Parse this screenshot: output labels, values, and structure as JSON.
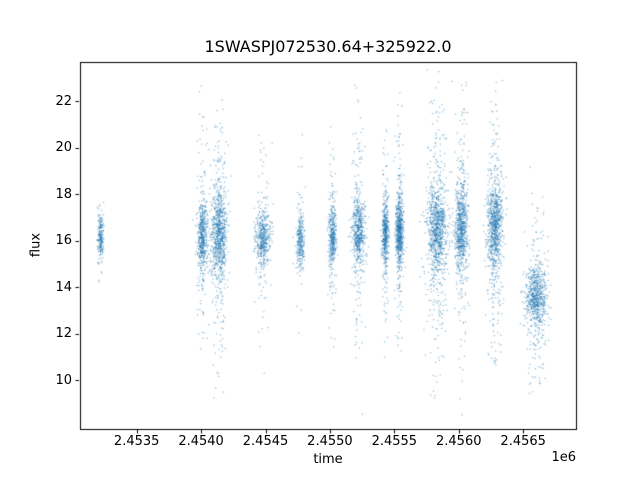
{
  "chart_data": {
    "type": "scatter",
    "title": "1SWASPJ072530.64+325922.0",
    "xlabel": "time",
    "ylabel": "flux",
    "x_offset_label": "1e6",
    "xlim": [
      2.45306,
      2.45691
    ],
    "ylim": [
      7.9,
      23.7
    ],
    "xticks": [
      2.4535,
      2.454,
      2.4545,
      2.455,
      2.4555,
      2.456,
      2.4565
    ],
    "xtick_labels": [
      "2.4535",
      "2.4540",
      "2.4545",
      "2.4550",
      "2.4555",
      "2.4560",
      "2.4565"
    ],
    "yticks": [
      10,
      12,
      14,
      16,
      18,
      20,
      22
    ],
    "ytick_labels": [
      "10",
      "12",
      "14",
      "16",
      "18",
      "20",
      "22"
    ],
    "grid": false,
    "legend": null,
    "marker_color": "#1f77b4",
    "marker_alpha": 0.5,
    "marker_size_px": 1.2,
    "clusters_note": "Light curve rendered as vertical observing-season clusters; each entry gives x center (1e6 JD), x std, point count, mean flux, core flux std, tail fraction, tail flux std.",
    "clusters": [
      {
        "x": 2.45322,
        "xs": 1.2e-05,
        "n": 220,
        "ym": 16.2,
        "ys": 0.5,
        "tf": 0.06,
        "ts": 0.9
      },
      {
        "x": 2.45401,
        "xs": 2e-05,
        "n": 550,
        "ym": 16.2,
        "ys": 0.8,
        "tf": 0.25,
        "ts": 2.3
      },
      {
        "x": 2.45414,
        "xs": 3e-05,
        "n": 900,
        "ym": 16.3,
        "ys": 0.9,
        "tf": 0.3,
        "ts": 2.6
      },
      {
        "x": 2.45448,
        "xs": 3e-05,
        "n": 500,
        "ym": 16.1,
        "ys": 0.55,
        "tf": 0.22,
        "ts": 2.0
      },
      {
        "x": 2.45477,
        "xs": 1.5e-05,
        "n": 300,
        "ym": 16.0,
        "ys": 0.6,
        "tf": 0.18,
        "ts": 1.7
      },
      {
        "x": 2.45502,
        "xs": 1.5e-05,
        "n": 420,
        "ym": 16.2,
        "ys": 0.6,
        "tf": 0.25,
        "ts": 2.2
      },
      {
        "x": 2.45522,
        "xs": 2.5e-05,
        "n": 620,
        "ym": 16.4,
        "ys": 0.7,
        "tf": 0.28,
        "ts": 2.4
      },
      {
        "x": 2.45543,
        "xs": 1.2e-05,
        "n": 500,
        "ym": 16.3,
        "ys": 0.7,
        "tf": 0.25,
        "ts": 2.2
      },
      {
        "x": 2.45554,
        "xs": 1.5e-05,
        "n": 700,
        "ym": 16.4,
        "ys": 0.7,
        "tf": 0.28,
        "ts": 2.3
      },
      {
        "x": 2.45583,
        "xs": 4e-05,
        "n": 1050,
        "ym": 16.5,
        "ys": 0.9,
        "tf": 0.34,
        "ts": 3.0
      },
      {
        "x": 2.45602,
        "xs": 2.5e-05,
        "n": 820,
        "ym": 16.6,
        "ys": 0.9,
        "tf": 0.3,
        "ts": 2.8
      },
      {
        "x": 2.45628,
        "xs": 3e-05,
        "n": 950,
        "ym": 16.6,
        "ys": 0.9,
        "tf": 0.33,
        "ts": 2.9
      },
      {
        "x": 2.4566,
        "xs": 4e-05,
        "n": 780,
        "ym": 13.6,
        "ys": 0.7,
        "tf": 0.28,
        "ts": 1.9
      }
    ]
  }
}
